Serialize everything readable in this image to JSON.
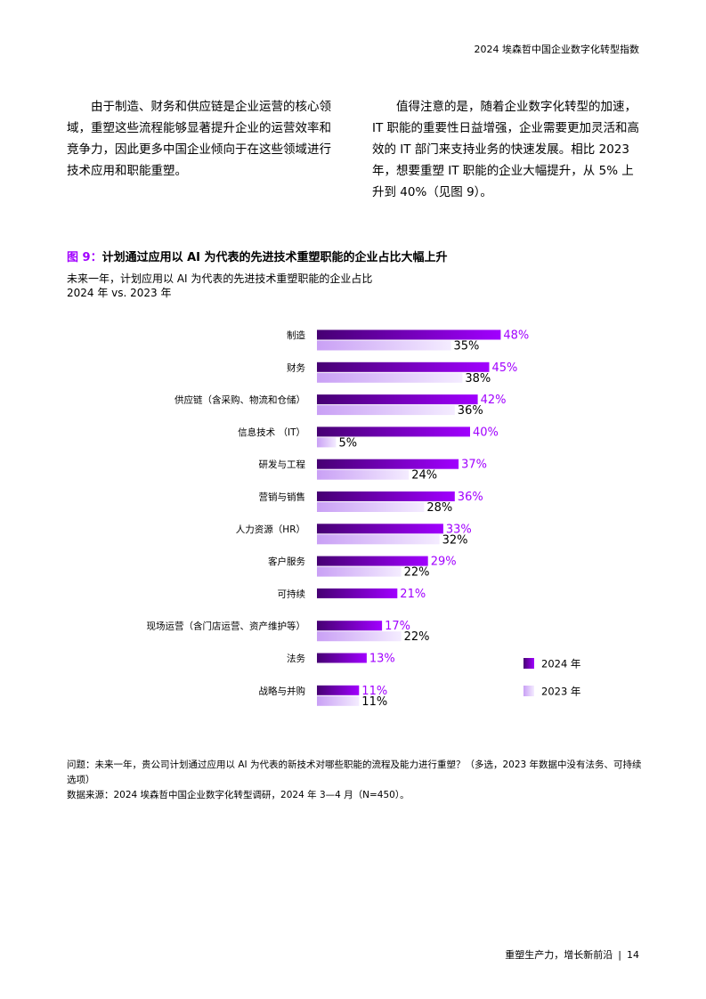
{
  "header": {
    "title": "2024 埃森哲中国企业数字化转型指数"
  },
  "paragraphs": [
    "由于制造、财务和供应链是企业运营的核心领域，重塑这些流程能够显著提升企业的运营效率和竞争力，因此更多中国企业倾向于在这些领域进行技术应用和职能重塑。",
    "值得注意的是，随着企业数字化转型的加速，IT 职能的重要性日益增强，企业需要更加灵活和高效的 IT 部门来支持业务的快速发展。相比 2023 年，想要重塑 IT 职能的企业大幅提升，从 5% 上升到 40%（见图 9）。"
  ],
  "figure_number": "图 9：",
  "chart_data": {
    "type": "bar",
    "orientation": "horizontal",
    "title": "计划通过应用以 AI 为代表的先进技术重塑职能的企业占比大幅上升",
    "subtitle": [
      "未来一年，计划应用以 AI 为代表的先进技术重塑职能的企业占比",
      "2024 年 vs. 2023 年"
    ],
    "categories": [
      "制造",
      "财务",
      "供应链（含采购、物流和仓储）",
      "信息技术 （IT）",
      "研发与工程",
      "营销与销售",
      "人力资源（HR）",
      "客户服务",
      "可持续",
      "现场运营（含门店运营、资产维护等）",
      "法务",
      "战略与并购"
    ],
    "series": [
      {
        "name": "2024 年",
        "color": "#a100ff",
        "values": [
          48,
          45,
          42,
          40,
          37,
          36,
          33,
          29,
          21,
          17,
          13,
          11
        ],
        "value_labels": [
          "48%",
          "45%",
          "42%",
          "40%",
          "37%",
          "36%",
          "33%",
          "29%",
          "21%",
          "17%",
          "13%",
          "11%"
        ]
      },
      {
        "name": "2023 年",
        "color": "#c9a0f5",
        "values": [
          35,
          38,
          36,
          5,
          24,
          28,
          32,
          22,
          null,
          22,
          null,
          11
        ],
        "value_labels": [
          "35%",
          "38%",
          "36%",
          "5%",
          "24%",
          "28%",
          "32%",
          "22%",
          null,
          "22%",
          null,
          "11%"
        ]
      }
    ],
    "legend": "right"
  },
  "notes": [
    "问题：未来一年，贵公司计划通过应用以 AI 为代表的新技术对哪些职能的流程及能力进行重塑？（多选，2023 年数据中没有法务、可持续选项）",
    "数据来源：2024 埃森哲中国企业数字化转型调研，2024 年 3—4 月（N=450）。"
  ],
  "footer": {
    "text": "重塑生产力，增长新前沿",
    "page": "14"
  }
}
